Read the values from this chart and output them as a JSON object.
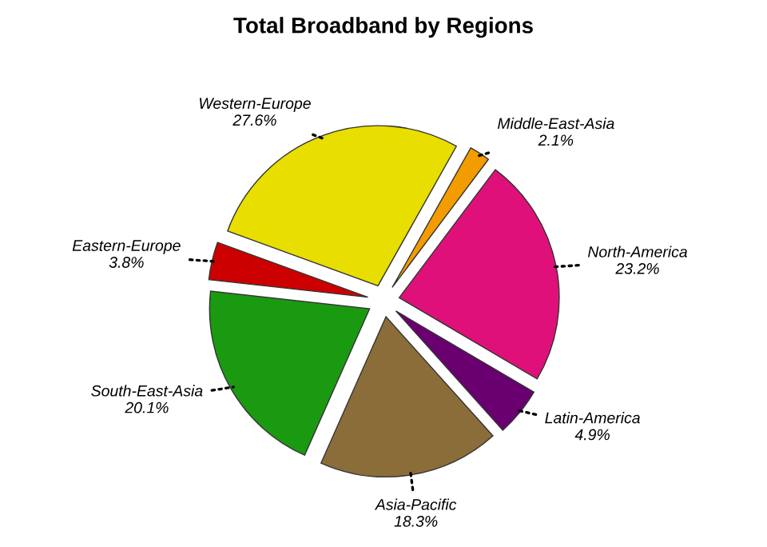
{
  "chart_data": {
    "type": "pie",
    "title": "Total Broadband by Regions",
    "categories": [
      "Western-Europe",
      "Middle-East-Asia",
      "North-America",
      "Latin-America",
      "Asia-Pacific",
      "South-East-Asia",
      "Eastern-Europe"
    ],
    "values": [
      27.6,
      2.1,
      23.2,
      4.9,
      18.3,
      20.1,
      3.8
    ],
    "value_labels": [
      "27.6%",
      "2.1%",
      "23.2%",
      "4.9%",
      "18.3%",
      "20.1%",
      "3.8%"
    ],
    "colors": [
      "#e8de00",
      "#f29c00",
      "#e0107a",
      "#6a0070",
      "#8b6d3a",
      "#1a9a10",
      "#cc0000"
    ],
    "legend": false
  }
}
